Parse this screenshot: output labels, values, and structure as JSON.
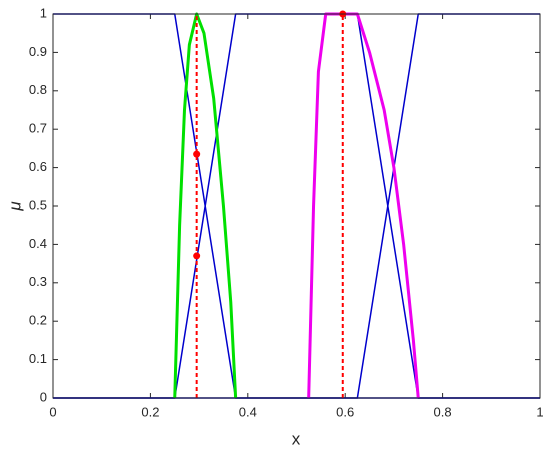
{
  "chart_data": {
    "type": "line",
    "xlabel": "x",
    "ylabel": "μ",
    "xlim": [
      0,
      1
    ],
    "ylim": [
      0,
      1
    ],
    "xticks": [
      0,
      0.2,
      0.4,
      0.6,
      0.8,
      1
    ],
    "yticks": [
      0,
      0.1,
      0.2,
      0.3,
      0.4,
      0.5,
      0.6,
      0.7,
      0.8,
      0.9,
      1
    ],
    "series": [
      {
        "color": "#0000cc",
        "style": "solid",
        "width": 1.5,
        "x": [
          0,
          0.25,
          0.375,
          1
        ],
        "values": [
          1,
          1,
          0,
          0
        ]
      },
      {
        "color": "#0000cc",
        "style": "solid",
        "width": 1.5,
        "x": [
          0,
          0.25,
          0.375,
          0.625,
          0.75,
          1
        ],
        "values": [
          0,
          0,
          1,
          1,
          0,
          0
        ]
      },
      {
        "color": "#0000cc",
        "style": "solid",
        "width": 1.5,
        "x": [
          0,
          0.625,
          0.75,
          1
        ],
        "values": [
          0,
          0,
          1,
          1
        ]
      },
      {
        "color": "#00e000",
        "style": "solid",
        "width": 3,
        "x": [
          0.25,
          0.26,
          0.27,
          0.28,
          0.295,
          0.31,
          0.33,
          0.35,
          0.365,
          0.375
        ],
        "values": [
          0,
          0.45,
          0.75,
          0.92,
          1,
          0.95,
          0.78,
          0.5,
          0.25,
          0
        ]
      },
      {
        "color": "#ee00ee",
        "style": "solid",
        "width": 3,
        "x": [
          0.525,
          0.535,
          0.545,
          0.56,
          0.625,
          0.65,
          0.68,
          0.7,
          0.72,
          0.74,
          0.75
        ],
        "values": [
          0,
          0.5,
          0.85,
          1,
          1,
          0.9,
          0.75,
          0.6,
          0.4,
          0.15,
          0
        ]
      },
      {
        "color": "#ff0000",
        "style": "dashed",
        "width": 2,
        "x": [
          0.295,
          0.295
        ],
        "values": [
          0,
          1
        ]
      },
      {
        "color": "#ff0000",
        "style": "dashed",
        "width": 2,
        "x": [
          0.595,
          0.595
        ],
        "values": [
          0,
          1
        ]
      },
      {
        "color": "#ff0000",
        "style": "markers",
        "x": [
          0.295,
          0.295,
          0.595
        ],
        "values": [
          0.635,
          0.37,
          1
        ]
      }
    ]
  }
}
